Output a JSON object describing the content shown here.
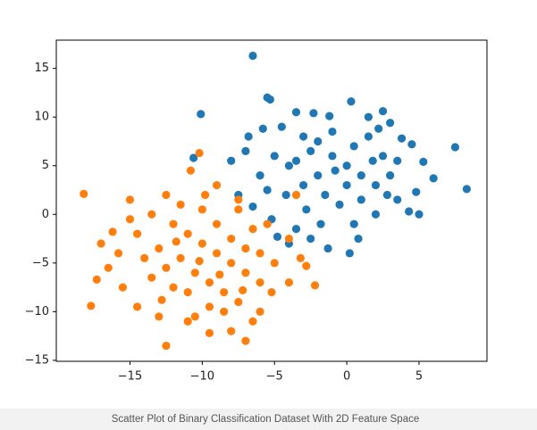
{
  "chart_data": {
    "type": "scatter",
    "caption": "Scatter Plot of Binary Classification Dataset With 2D Feature Space",
    "xlim": [
      -20.1,
      9.7
    ],
    "ylim": [
      -15.1,
      17.9
    ],
    "xticks": [
      {
        "value": -15,
        "label": "−15"
      },
      {
        "value": -10,
        "label": "−10"
      },
      {
        "value": -5,
        "label": "−5"
      },
      0,
      5
    ],
    "yticks": [
      {
        "value": -15,
        "label": "−15"
      },
      {
        "value": -10,
        "label": "−10"
      },
      {
        "value": -5,
        "label": "−5"
      },
      0,
      5,
      10,
      15
    ],
    "series": [
      {
        "color": "#1f77b4",
        "x": [
          -6.5,
          -10.1,
          7.5,
          8.3,
          6.0,
          -10.6,
          -5.3,
          -5.5,
          0.3,
          -3.5,
          -2.3,
          -1.2,
          1.5,
          2.5,
          3.0,
          3.8,
          4.5,
          5.3,
          4.8,
          5.0,
          4.3,
          3.5,
          2.0,
          0.8,
          0.2,
          -1.3,
          -2.5,
          -3.5,
          -4.0,
          -4.8,
          -5.2,
          -6.5,
          -7.5,
          -8.0,
          -7.0,
          -6.8,
          -5.8,
          -4.5,
          -3.0,
          -2.0,
          -1.0,
          0.0,
          1.0,
          2.0,
          -2.0,
          -3.0,
          -4.0,
          -5.0,
          -1.5,
          0.5,
          1.5,
          2.5,
          3.0,
          -0.5,
          1.0,
          -2.5,
          -3.5,
          -1.0,
          0.0,
          2.8,
          -4.2,
          1.8,
          -0.8,
          3.5,
          -2.8,
          2.2,
          -6.0,
          -5.5,
          0.5,
          -1.8
        ],
        "y": [
          16.3,
          10.3,
          6.9,
          2.6,
          3.7,
          5.8,
          11.8,
          12.0,
          11.6,
          10.5,
          10.4,
          10.1,
          10.0,
          10.6,
          9.4,
          7.8,
          7.2,
          5.4,
          2.3,
          0.0,
          0.3,
          1.5,
          0.0,
          -2.5,
          -4.0,
          -3.5,
          -2.5,
          -1.5,
          -3.0,
          -2.3,
          -0.5,
          0.8,
          2.0,
          5.5,
          6.5,
          8.0,
          8.8,
          9.0,
          8.0,
          7.5,
          6.0,
          5.0,
          4.0,
          3.0,
          4.0,
          3.0,
          5.0,
          6.0,
          2.0,
          7.0,
          8.0,
          6.0,
          4.0,
          1.0,
          1.5,
          6.5,
          5.5,
          8.5,
          3.0,
          2.0,
          2.0,
          5.5,
          4.5,
          5.5,
          0.5,
          8.8,
          4.0,
          2.5,
          -1.0,
          -1.0
        ]
      },
      {
        "color": "#ff7f0e",
        "x": [
          -18.2,
          -17.7,
          -12.5,
          -7.0,
          -2.2,
          -11.0,
          -17.3,
          -16.2,
          -15.0,
          -12.5,
          -10.2,
          -10.8,
          -9.0,
          -7.5,
          -5.5,
          -3.5,
          -4.0,
          -3.2,
          -2.8,
          -4.0,
          -5.2,
          -6.0,
          -6.5,
          -8.0,
          -9.5,
          -10.5,
          -13.0,
          -14.5,
          -15.5,
          -16.5,
          -17.0,
          -15.8,
          -14.5,
          -13.5,
          -12.0,
          -11.0,
          -10.0,
          -9.0,
          -8.0,
          -7.0,
          -6.0,
          -11.5,
          -12.5,
          -13.5,
          -10.5,
          -9.5,
          -8.5,
          -7.5,
          -11.0,
          -12.0,
          -9.0,
          -8.0,
          -7.0,
          -6.0,
          -5.0,
          -10.0,
          -11.5,
          -13.0,
          -14.0,
          -9.5,
          -8.5,
          -7.5,
          -6.5,
          -12.8,
          -10.2,
          -8.8,
          -11.8,
          -7.2,
          -9.8,
          -15.0
        ],
        "y": [
          2.1,
          -9.4,
          -13.5,
          -13.0,
          -7.3,
          -11.0,
          -6.7,
          -1.8,
          1.5,
          2.0,
          6.3,
          4.5,
          3.0,
          0.5,
          -1.0,
          2.0,
          -2.5,
          -4.5,
          -5.3,
          -7.0,
          -8.0,
          -10.0,
          -11.0,
          -12.0,
          -12.2,
          -10.5,
          -10.5,
          -9.5,
          -7.5,
          -5.5,
          -3.0,
          -4.0,
          -2.0,
          0.0,
          -1.0,
          -2.0,
          -3.0,
          -4.0,
          -5.0,
          -6.0,
          -7.0,
          -4.5,
          -5.5,
          -6.5,
          -6.0,
          -7.0,
          -8.0,
          -9.0,
          -8.0,
          -7.5,
          -1.0,
          -2.5,
          -3.5,
          -4.0,
          -5.0,
          0.5,
          1.0,
          -3.5,
          -4.5,
          -9.5,
          -10.0,
          1.5,
          -1.5,
          -8.8,
          -4.8,
          -6.2,
          -2.8,
          -7.8,
          2.0,
          -0.5
        ]
      }
    ]
  }
}
